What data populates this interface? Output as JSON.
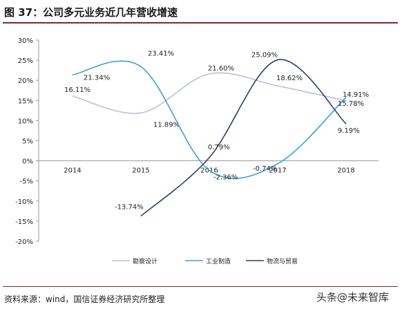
{
  "header": {
    "title": "图 37：公司多元业务近几年营收增速"
  },
  "footer": {
    "source": "资料来源：wind，国信证券经济研究所整理",
    "watermark": "头条@未来智库"
  },
  "chart_data": {
    "type": "line",
    "title": "",
    "xlabel": "",
    "ylabel": "",
    "categories": [
      "2014",
      "2015",
      "2016",
      "2017",
      "2018"
    ],
    "ylim": [
      -20,
      30
    ],
    "yticks": [
      -20,
      -15,
      -10,
      -5,
      0,
      5,
      10,
      15,
      20,
      25,
      30
    ],
    "ytick_labels": [
      "-20%",
      "-15%",
      "-10%",
      "-5%",
      "0%",
      "5%",
      "10%",
      "15%",
      "20%",
      "25%",
      "30%"
    ],
    "grid": false,
    "legend_position": "bottom",
    "series": [
      {
        "name": "勘察设计",
        "color": "#b8c4cc",
        "values": [
          16.11,
          11.89,
          21.6,
          18.62,
          14.91
        ],
        "labels": [
          "16.11%",
          "11.89%",
          "21.60%",
          "18.62%",
          "14.91%"
        ]
      },
      {
        "name": "工业制造",
        "color": "#3a9fd8",
        "values": [
          21.34,
          23.41,
          -2.36,
          -0.74,
          15.78
        ],
        "labels": [
          "21.34%",
          "23.41%",
          "-2.36%",
          "-0.74%",
          "15.78%"
        ]
      },
      {
        "name": "物流与贸易",
        "color": "#2c3e66",
        "values": [
          null,
          -13.74,
          0.79,
          25.09,
          9.19
        ],
        "labels": [
          "",
          "-13.74%",
          "0.79%",
          "25.09%",
          "9.19%"
        ]
      }
    ]
  }
}
